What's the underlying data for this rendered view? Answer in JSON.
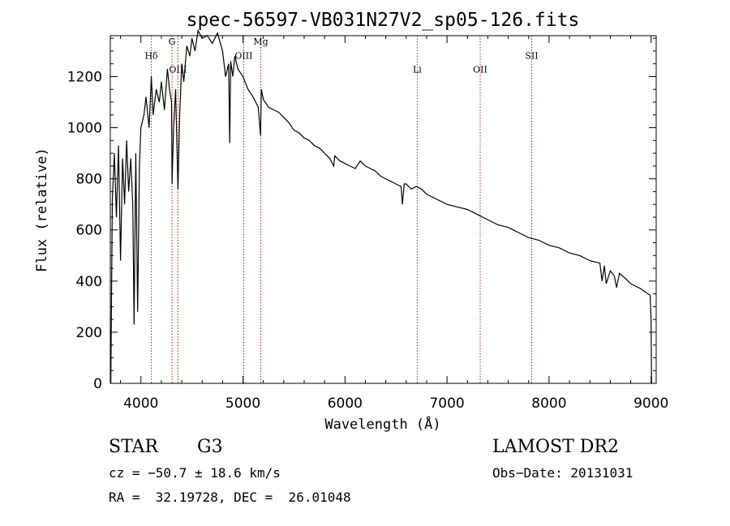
{
  "chart_data": {
    "type": "line",
    "title": "spec-56597-VB031N27V2_sp05-126.fits",
    "xlabel": "Wavelength (Å)",
    "ylabel": "Flux (relative)",
    "xlim": [
      3700,
      9050
    ],
    "ylim": [
      0,
      1360
    ],
    "xticks": [
      4000,
      5000,
      6000,
      7000,
      8000,
      9000
    ],
    "yticks": [
      0,
      200,
      400,
      600,
      800,
      1000,
      1200
    ],
    "grid": false,
    "line_color": "#000000",
    "marker_color": "#b22222",
    "line_markers": [
      {
        "label": "Hδ",
        "x": 4102,
        "label_y": 1270
      },
      {
        "label": "G",
        "x": 4305,
        "label_y": 1325
      },
      {
        "label": "OIII",
        "x": 4363,
        "label_y": 1215
      },
      {
        "label": "OIII",
        "x": 5007,
        "label_y": 1270
      },
      {
        "label": "Mg",
        "x": 5175,
        "label_y": 1325
      },
      {
        "label": "Li",
        "x": 6708,
        "label_y": 1215
      },
      {
        "label": "OII",
        "x": 7325,
        "label_y": 1215
      },
      {
        "label": "SII",
        "x": 7830,
        "label_y": 1270
      }
    ],
    "series": [
      {
        "x": [
          3705,
          3720,
          3740,
          3760,
          3780,
          3800,
          3820,
          3840,
          3860,
          3880,
          3900,
          3920,
          3933,
          3950,
          3968,
          3985,
          4000,
          4030,
          4050,
          4080,
          4102,
          4120,
          4150,
          4180,
          4200,
          4230,
          4260,
          4280,
          4300,
          4305,
          4320,
          4340,
          4363,
          4380,
          4400,
          4420,
          4450,
          4480,
          4500,
          4530,
          4560,
          4600,
          4650,
          4700,
          4750,
          4800,
          4830,
          4860,
          4870,
          4880,
          4900,
          4920,
          4950,
          5000,
          5050,
          5100,
          5150,
          5172,
          5180,
          5200,
          5250,
          5300,
          5350,
          5400,
          5450,
          5500,
          5550,
          5600,
          5650,
          5700,
          5750,
          5800,
          5850,
          5890,
          5900,
          5950,
          6000,
          6050,
          6100,
          6150,
          6200,
          6250,
          6300,
          6350,
          6400,
          6450,
          6500,
          6550,
          6563,
          6580,
          6600,
          6650,
          6700,
          6750,
          6800,
          6900,
          7000,
          7100,
          7200,
          7300,
          7400,
          7500,
          7600,
          7700,
          7800,
          7900,
          8000,
          8100,
          8200,
          8300,
          8400,
          8498,
          8520,
          8542,
          8560,
          8600,
          8640,
          8662,
          8690,
          8750,
          8800,
          8850,
          8900,
          8950,
          8990,
          9000,
          9005
        ],
        "values": [
          0,
          720,
          900,
          650,
          930,
          480,
          880,
          700,
          950,
          750,
          880,
          700,
          230,
          900,
          280,
          850,
          1000,
          1050,
          1120,
          1000,
          1200,
          1050,
          1150,
          1100,
          1180,
          1070,
          1230,
          1150,
          1100,
          780,
          1000,
          1150,
          760,
          1050,
          1250,
          1180,
          1320,
          1280,
          1350,
          1300,
          1380,
          1350,
          1360,
          1330,
          1370,
          1300,
          1200,
          1250,
          940,
          1260,
          1200,
          1280,
          1230,
          1200,
          1150,
          1120,
          1080,
          970,
          1150,
          1110,
          1080,
          1070,
          1060,
          1040,
          1020,
          990,
          980,
          960,
          950,
          930,
          920,
          900,
          880,
          850,
          890,
          870,
          860,
          850,
          840,
          870,
          850,
          840,
          830,
          810,
          800,
          790,
          780,
          770,
          700,
          780,
          780,
          760,
          770,
          760,
          740,
          720,
          700,
          690,
          680,
          660,
          640,
          620,
          610,
          590,
          570,
          560,
          540,
          530,
          510,
          500,
          480,
          470,
          400,
          460,
          390,
          440,
          420,
          375,
          430,
          410,
          390,
          380,
          370,
          355,
          345,
          250,
          0
        ]
      }
    ]
  },
  "info": {
    "object_class": "STAR",
    "subclass": "G3",
    "survey": "LAMOST DR2",
    "redshift": "cz = −50.7 ± 18.6 km/s",
    "obs_date": "Obs−Date: 20131031",
    "coordinates": "RA =  32.19728, DEC =  26.01048"
  }
}
